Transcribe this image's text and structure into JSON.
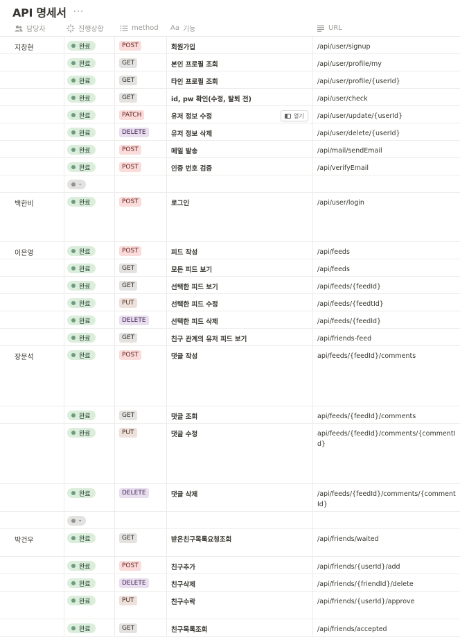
{
  "page": {
    "title": "API 명세서",
    "more_label": "···"
  },
  "columns": {
    "owner": "담당자",
    "status": "진행상황",
    "method": "method",
    "feature_prefix": "Aa",
    "feature": "기능",
    "url": "URL"
  },
  "open_label": "열기",
  "rows": [
    {
      "owner": "지창현",
      "status": "완료",
      "method": "POST",
      "feature": "회원가입",
      "url": "/api/user/signup"
    },
    {
      "owner": "",
      "status": "완료",
      "method": "GET",
      "feature": "본인 프로필 조회",
      "url": "/api/user/profile/my"
    },
    {
      "owner": "",
      "status": "완료",
      "method": "GET",
      "feature": "타인 프로필 조회",
      "url": "/api/user/profile/{userId}"
    },
    {
      "owner": "",
      "status": "완료",
      "method": "GET",
      "feature": "id, pw 확인(수정, 탈퇴 전)",
      "url": "/api/user/check"
    },
    {
      "owner": "",
      "status": "완료",
      "method": "PATCH",
      "feature": "유저 정보 수정",
      "url": "/api/user/update/{userId}"
    },
    {
      "owner": "",
      "status": "완료",
      "method": "DELETE",
      "feature": "유저 정보 삭제",
      "url": "/api/user/delete/{userId}"
    },
    {
      "owner": "",
      "status": "완료",
      "method": "POST",
      "feature": "메일 발송",
      "url": "/api/mail/sendEmail"
    },
    {
      "owner": "",
      "status": "완료",
      "method": "POST",
      "feature": "인증 번호 검증",
      "url": "/api/verifyEmail"
    },
    {
      "owner": "",
      "status": "-",
      "method": "",
      "feature": "",
      "url": ""
    },
    {
      "owner": "백한비",
      "status": "완료",
      "method": "POST",
      "feature": "로그인",
      "url": "/api/user/login"
    },
    {
      "owner": "이은영",
      "status": "완료",
      "method": "POST",
      "feature": "피드 작성",
      "url": "/api/feeds"
    },
    {
      "owner": "",
      "status": "완료",
      "method": "GET",
      "feature": "모든 피드 보기",
      "url": "/api/feeds"
    },
    {
      "owner": "",
      "status": "완료",
      "method": "GET",
      "feature": "선택한 피드 보기",
      "url": "/api/feeds/{feedId}"
    },
    {
      "owner": "",
      "status": "완료",
      "method": "PUT",
      "feature": "선택한 피드 수정",
      "url": "/api/feeds/{feedtId}"
    },
    {
      "owner": "",
      "status": "완료",
      "method": "DELETE",
      "feature": "선택한 피드 삭제",
      "url": "/api/feeds/{feedId}"
    },
    {
      "owner": "",
      "status": "완료",
      "method": "GET",
      "feature": "친구 관계의 유저 피드 보기",
      "url": "/api/friends-feed"
    },
    {
      "owner": "장문석",
      "status": "완료",
      "method": "POST",
      "feature": "댓글 작성",
      "url": "api/feeds/{feedId}/comments"
    },
    {
      "owner": "",
      "status": "완료",
      "method": "GET",
      "feature": "댓글 조회",
      "url": "api/feeds/{feedId}/comments"
    },
    {
      "owner": "",
      "status": "완료",
      "method": "PUT",
      "feature": "댓글 수정",
      "url": "api/feeds/{feedId}/comments/{commentId}"
    },
    {
      "owner": "",
      "status": "완료",
      "method": "DELETE",
      "feature": "댓글 삭제",
      "url": "/api/feeds/{feedId}/comments/{commentId}"
    },
    {
      "owner": "",
      "status": "-",
      "method": "",
      "feature": "",
      "url": ""
    },
    {
      "owner": "박건우",
      "status": "완료",
      "method": "GET",
      "feature": "받은친구목록요청조회",
      "url": "/api/friends/waited"
    },
    {
      "owner": "",
      "status": "완료",
      "method": "POST",
      "feature": "친구추가",
      "url": "/api/friends/{userId}/add"
    },
    {
      "owner": "",
      "status": "완료",
      "method": "DELETE",
      "feature": "친구삭제",
      "url": "/api/friends/{friendId}/delete"
    },
    {
      "owner": "",
      "status": "완료",
      "method": "PUT",
      "feature": "친구수락",
      "url": "/api/friends/{userId}/approve"
    },
    {
      "owner": "",
      "status": "완료",
      "method": "GET",
      "feature": "친구목록조회",
      "url": "/api/friends/accepted"
    }
  ]
}
